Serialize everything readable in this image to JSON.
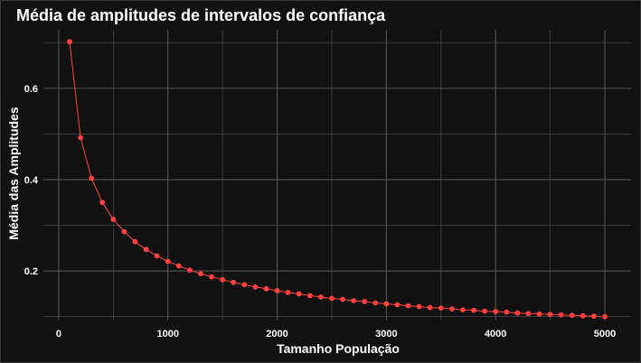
{
  "chart_data": {
    "type": "line",
    "title": "Média de amplitudes de intervalos de confiança",
    "xlabel": "Tamanho População",
    "ylabel": "Média das Amplitudes",
    "xlim": [
      -140,
      5240
    ],
    "ylim": [
      0.0915,
      0.728
    ],
    "xticks": [
      0,
      1000,
      2000,
      3000,
      4000,
      5000
    ],
    "xtick_labels": [
      "0",
      "1000",
      "2000",
      "3000",
      "4000",
      "5000"
    ],
    "yticks": [
      0.2,
      0.4,
      0.6
    ],
    "ytick_labels": [
      "0.2",
      "0.4",
      "0.6"
    ],
    "grid": true,
    "colors": {
      "background": "#111111",
      "grid": "#555555",
      "series": "#ff4040",
      "text": "#ffffff"
    },
    "series": [
      {
        "x": [
          100,
          200,
          300,
          400,
          500,
          600,
          700,
          800,
          900,
          1000,
          1100,
          1200,
          1300,
          1400,
          1500,
          1600,
          1700,
          1800,
          1900,
          2000,
          2100,
          2200,
          2300,
          2400,
          2500,
          2600,
          2700,
          2800,
          2900,
          3000,
          3100,
          3200,
          3300,
          3400,
          3500,
          3600,
          3700,
          3800,
          3900,
          4000,
          4100,
          4200,
          4300,
          4400,
          4500,
          4600,
          4700,
          4800,
          4900,
          5000
        ],
        "values": [
          0.702,
          0.492,
          0.403,
          0.35,
          0.313,
          0.286,
          0.264,
          0.247,
          0.233,
          0.221,
          0.211,
          0.202,
          0.194,
          0.187,
          0.181,
          0.175,
          0.17,
          0.165,
          0.161,
          0.157,
          0.153,
          0.15,
          0.146,
          0.143,
          0.14,
          0.138,
          0.135,
          0.133,
          0.13,
          0.128,
          0.126,
          0.124,
          0.122,
          0.12,
          0.119,
          0.117,
          0.115,
          0.114,
          0.112,
          0.111,
          0.11,
          0.108,
          0.107,
          0.106,
          0.105,
          0.104,
          0.103,
          0.102,
          0.101,
          0.1
        ]
      }
    ]
  }
}
